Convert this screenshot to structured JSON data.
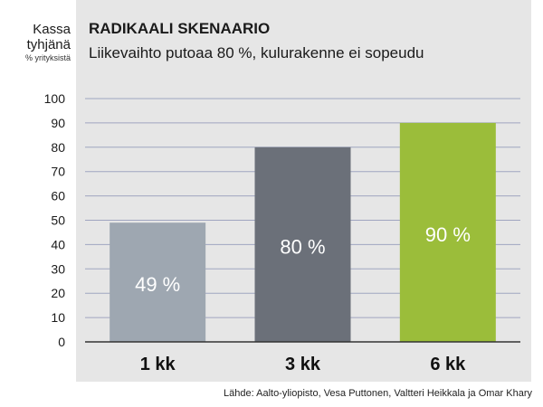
{
  "chart_data": {
    "type": "bar",
    "title": "RADIKAALI SKENAARIO",
    "subtitle": "Liikevaihto putoaa 80 %, kulurakenne ei sopeudu",
    "ylabel": "Kassa tyhjänä",
    "ylabel_unit": "% yrityksistä",
    "categories": [
      "1 kk",
      "3 kk",
      "6 kk"
    ],
    "values": [
      49,
      80,
      90
    ],
    "value_labels": [
      "49 %",
      "80 %",
      "90 %"
    ],
    "colors": [
      "#9ea7b1",
      "#6b7079",
      "#9bbd3a"
    ],
    "ylim": [
      0,
      100
    ],
    "yticks": [
      0,
      10,
      20,
      30,
      40,
      50,
      60,
      70,
      80,
      90,
      100
    ],
    "grid": true,
    "grid_color": "#9fa5c0",
    "source": "Lähde: Aalto-yliopisto,  Vesa Puttonen, Valtteri Heikkala ja Omar Khary"
  }
}
